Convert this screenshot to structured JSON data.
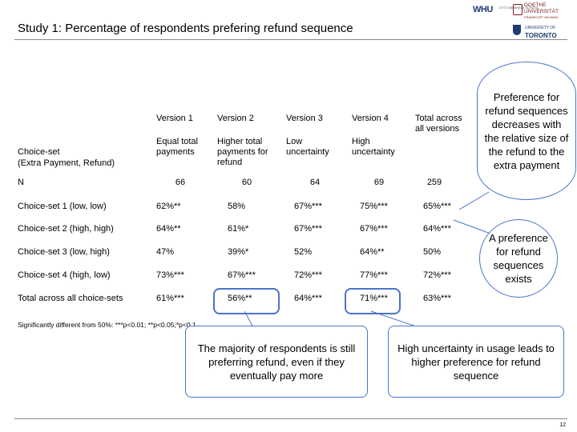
{
  "title": "Study 1: Percentage of respondents prefering refund sequence",
  "logos": {
    "whu": "WHU",
    "whu_sub": "OTTO BEISHEIM SCHOOL",
    "goethe": [
      "GOETHE",
      "UNIVERSITÄT",
      "FRANKFURT AM MAIN"
    ],
    "toronto_line1": "UNIVERSITY OF",
    "toronto_line2": "TORONTO"
  },
  "table": {
    "row_header_label_1": "Choice-set",
    "row_header_label_2": "(Extra Payment, Refund)",
    "n_label": "N",
    "columns": [
      {
        "version": "Version 1",
        "desc": "Equal total payments",
        "n": "66"
      },
      {
        "version": "Version 2",
        "desc": "Higher total payments for refund",
        "n": "60"
      },
      {
        "version": "Version 3",
        "desc": "Low uncertainty",
        "n": "64"
      },
      {
        "version": "Version 4",
        "desc": "High uncertainty",
        "n": "69"
      },
      {
        "version": "Total across all versions",
        "desc": "",
        "n": "259"
      }
    ],
    "rows": [
      {
        "label": "Choice-set 1 (low, low)",
        "values": [
          "62%**",
          "58%",
          "67%***",
          "75%***",
          "65%***"
        ]
      },
      {
        "label": "Choice-set 2 (high, high)",
        "values": [
          "64%**",
          "61%*",
          "67%***",
          "67%***",
          "64%***"
        ]
      },
      {
        "label": "Choice-set 3 (low, high)",
        "values": [
          "47%",
          "39%*",
          "52%",
          "64%**",
          "50%"
        ]
      },
      {
        "label": "Choice-set 4 (high, low)",
        "values": [
          "73%***",
          "67%***",
          "72%***",
          "77%***",
          "72%***"
        ]
      },
      {
        "label": "Total across all choice-sets",
        "values": [
          "61%***",
          "56%**",
          "64%***",
          "71%***",
          "63%***"
        ]
      }
    ]
  },
  "significance_note": "Significantly different from 50%: ***p<0.01; **p<0.05;*p<0.1",
  "callouts": {
    "preference_decreases": "Preference for refund sequences decreases with the relative size of the refund to the extra payment",
    "preference_exists": "A preference for refund sequences exists",
    "majority": "The majority of respondents is still preferring refund, even if they eventually pay more",
    "high_uncertainty": "High uncertainty in usage leads to higher preference for refund sequence"
  },
  "accent_color": "#4a74c9",
  "page_number": "12"
}
